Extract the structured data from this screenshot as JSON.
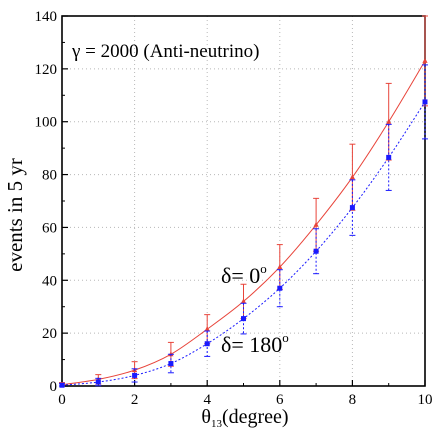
{
  "chart_data": {
    "type": "scatter",
    "title": "",
    "xlabel": "θ13(degree)",
    "xlabel_main": "θ",
    "xlabel_sub": "13",
    "xlabel_rest": "(degree)",
    "ylabel": "events in 5 yr",
    "xlim": [
      0,
      10
    ],
    "ylim": [
      0,
      140
    ],
    "x_ticks": [
      0,
      2,
      4,
      6,
      8,
      10
    ],
    "y_ticks": [
      0,
      20,
      40,
      60,
      80,
      100,
      120,
      140
    ],
    "grid": true,
    "annotation": "γ = 2000 (Anti-neutrino)",
    "series": [
      {
        "name": "δ= 0°",
        "label_main": "δ= 0",
        "label_sup": "o",
        "color": "#e8443a",
        "line_style": "solid",
        "marker": "triangle",
        "x": [
          0,
          1,
          2,
          3,
          4,
          5,
          6,
          7,
          8,
          9,
          10
        ],
        "values": [
          0.5,
          2.5,
          6,
          12,
          21.5,
          32,
          45,
          61,
          79,
          100,
          123
        ],
        "err": [
          0.8,
          1.8,
          3.2,
          4.5,
          5.5,
          6.5,
          8.5,
          10,
          12.5,
          14.5,
          17
        ]
      },
      {
        "name": "δ= 180°",
        "label_main": "δ= 180",
        "label_sup": "o",
        "color": "#1a1aff",
        "line_style": "dotted",
        "marker": "square",
        "x": [
          0,
          1,
          2,
          3,
          4,
          5,
          6,
          7,
          8,
          9,
          10
        ],
        "values": [
          0.3,
          1.5,
          4,
          8.5,
          16,
          25.5,
          37,
          51,
          67.5,
          86.5,
          107.5
        ],
        "err": [
          0.6,
          1.4,
          2.5,
          3.5,
          4.8,
          5.8,
          7,
          8.5,
          10.5,
          12.5,
          14
        ]
      }
    ]
  }
}
